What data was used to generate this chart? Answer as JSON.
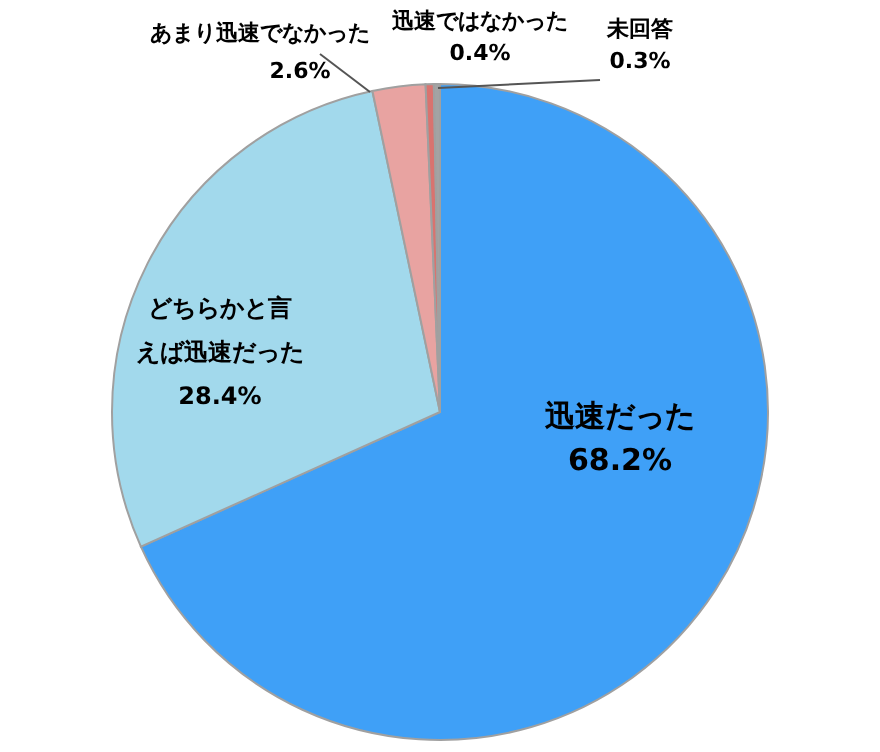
{
  "chart_data": {
    "type": "pie",
    "categories": [
      "迅速だった",
      "どちらかと言えば迅速だった",
      "あまり迅速でなかった",
      "迅速ではなかった",
      "未回答"
    ],
    "values": [
      68.2,
      28.4,
      2.6,
      0.4,
      0.3
    ],
    "value_labels": [
      "68.2%",
      "28.4%",
      "2.6%",
      "0.4%",
      "0.3%"
    ],
    "colors": [
      "#3fa0f7",
      "#a2d9ec",
      "#e8a3a1",
      "#d9736f",
      "#a3a3a3"
    ]
  }
}
